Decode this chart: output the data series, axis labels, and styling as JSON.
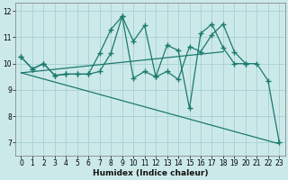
{
  "xlabel": "Humidex (Indice chaleur)",
  "background_color": "#cce9e9",
  "grid_color": "#aad4d4",
  "line_color": "#1a7a6e",
  "xlim": [
    -0.5,
    23.5
  ],
  "ylim": [
    6.5,
    12.3
  ],
  "yticks": [
    7,
    8,
    9,
    10,
    11,
    12
  ],
  "xticks": [
    0,
    1,
    2,
    3,
    4,
    5,
    6,
    7,
    8,
    9,
    10,
    11,
    12,
    13,
    14,
    15,
    16,
    17,
    18,
    19,
    20,
    21,
    22,
    23
  ],
  "series1_x": [
    0,
    1,
    2,
    3,
    4,
    5,
    6,
    7,
    8,
    9,
    10,
    11,
    12,
    13,
    14,
    15,
    16,
    17,
    18,
    19,
    20,
    21,
    22,
    23
  ],
  "series1_y": [
    10.25,
    9.8,
    10.0,
    9.55,
    9.6,
    9.6,
    9.6,
    10.4,
    11.3,
    11.8,
    10.85,
    11.45,
    9.5,
    9.7,
    9.4,
    10.65,
    10.45,
    11.1,
    11.5,
    10.45,
    10.0,
    10.0,
    9.35,
    7.0
  ],
  "series2_x": [
    0,
    1,
    2,
    3,
    4,
    5,
    6,
    7,
    8,
    9,
    10,
    11,
    12,
    13,
    14,
    15,
    16,
    17,
    18,
    19,
    20
  ],
  "series2_y": [
    10.25,
    9.8,
    10.0,
    9.55,
    9.6,
    9.6,
    9.6,
    9.7,
    10.4,
    11.8,
    9.45,
    9.7,
    9.5,
    10.7,
    10.5,
    8.3,
    11.15,
    11.5,
    10.6,
    10.0,
    10.0
  ],
  "series3_x": [
    0,
    18
  ],
  "series3_y": [
    9.65,
    10.45
  ],
  "series4_x": [
    0,
    23
  ],
  "series4_y": [
    9.65,
    6.95
  ]
}
